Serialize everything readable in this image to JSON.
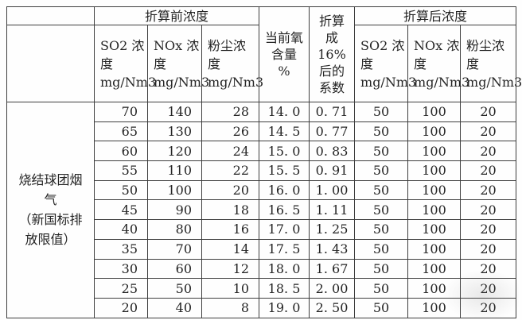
{
  "table": {
    "groups": {
      "before": "折算前浓度",
      "after": "折算后浓度"
    },
    "oxygen_header": "当前氧\n含量\n%",
    "coefficient_header": "折算\n成\n16%\n后的\n系数",
    "sub_headers_before": [
      "SO2 浓\n度\nmg/Nm3",
      "NOx 浓\n度\nmg/Nm3",
      "粉尘浓\n度\nmg/Nm3"
    ],
    "sub_headers_after": [
      "SO2 浓\n度\nmg/Nm3",
      "NOx 浓\n度\nmg/Nm3",
      "粉尘浓\n度\nmg/Nm3"
    ],
    "row_label": "烧结球团烟\n气\n（新国标排\n放限值）",
    "column_keys": [
      "so2-before",
      "nox-before",
      "dust-before",
      "oxygen",
      "coefficient",
      "so2-after",
      "nox-after",
      "dust-after"
    ],
    "rows": [
      [
        "70",
        "140",
        "28",
        "14. 0",
        "0. 71",
        "50",
        "100",
        "20"
      ],
      [
        "65",
        "130",
        "26",
        "14. 5",
        "0. 77",
        "50",
        "100",
        "20"
      ],
      [
        "60",
        "120",
        "24",
        "15. 0",
        "0. 83",
        "50",
        "100",
        "20"
      ],
      [
        "55",
        "110",
        "22",
        "15. 5",
        "0. 91",
        "50",
        "100",
        "20"
      ],
      [
        "50",
        "100",
        "20",
        "16. 0",
        "1. 00",
        "50",
        "100",
        "20"
      ],
      [
        "45",
        "90",
        "18",
        "16. 5",
        "1. 11",
        "50",
        "100",
        "20"
      ],
      [
        "40",
        "80",
        "16",
        "17. 0",
        "1. 25",
        "50",
        "100",
        "20"
      ],
      [
        "35",
        "70",
        "14",
        "17. 5",
        "1. 43",
        "50",
        "100",
        "20"
      ],
      [
        "30",
        "60",
        "12",
        "18. 0",
        "1. 67",
        "50",
        "100",
        "20"
      ],
      [
        "25",
        "50",
        "10",
        "18. 5",
        "2. 00",
        "50",
        "100",
        "20"
      ],
      [
        "20",
        "40",
        "8",
        "19. 0",
        "2. 50",
        "50",
        "100",
        "20"
      ]
    ],
    "colors": {
      "border": "#3e3e3e",
      "text": "#242424",
      "background": "#ffffff"
    }
  }
}
